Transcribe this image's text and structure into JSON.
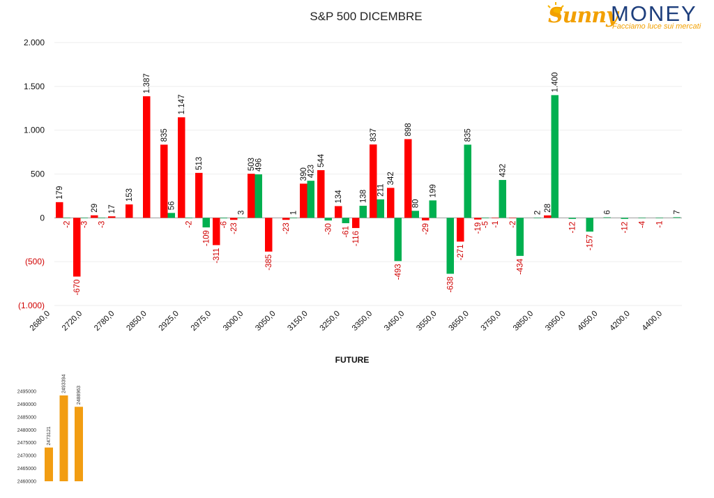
{
  "chart_data": [
    {
      "type": "bar",
      "title": "S&P 500 DICEMBRE",
      "ylim": [
        -1000,
        2000
      ],
      "yticks": [
        2000,
        1500,
        1000,
        500,
        0,
        -500,
        -1000
      ],
      "ytick_labels": [
        "2.000",
        "1.500",
        "1.000",
        "500",
        "0",
        "(500)",
        "(1.000)"
      ],
      "grid": true,
      "x_tick_labels": [
        "2680,0",
        "2720,0",
        "2780,0",
        "2850,0",
        "2925,0",
        "2975,0",
        "3000,0",
        "3050,0",
        "3150,0",
        "3250,0",
        "3350,0",
        "3450,0",
        "3550,0",
        "3650,0",
        "3750,0",
        "3850,0",
        "3950,0",
        "4050,0",
        "4200,0",
        "4400,0"
      ],
      "series": [
        {
          "color": "#ff0000",
          "values": [
            179,
            -670,
            29,
            17,
            153,
            1387,
            835,
            1147,
            513,
            -311,
            -23,
            503,
            -385,
            -23,
            390,
            544,
            134,
            -116,
            837,
            342,
            898,
            -29,
            null,
            -271,
            -19,
            -1,
            -2,
            null,
            28,
            null,
            null,
            null,
            null
          ],
          "labels": [
            "179",
            "-670",
            "29",
            "17",
            "153",
            "1.387",
            "835",
            "1.147",
            "513",
            "-311",
            "-23",
            "503",
            "-385",
            "-23",
            "390",
            "544",
            "134",
            "-116",
            "837",
            "342",
            "898",
            "-29",
            "",
            "-271",
            "-19",
            "-1",
            "-2",
            "",
            "28",
            "",
            "",
            "",
            ""
          ]
        },
        {
          "color": "#00b050",
          "values": [
            -2,
            -3,
            -3,
            null,
            null,
            null,
            56,
            -2,
            -109,
            -6,
            3,
            496,
            null,
            1,
            423,
            -30,
            -61,
            138,
            211,
            -493,
            80,
            199,
            -638,
            835,
            -5,
            432,
            -434,
            2,
            1400,
            -12,
            -157,
            6,
            -12,
            -4,
            -1,
            7
          ],
          "labels": [
            "-2",
            "-3",
            "-3",
            "",
            "",
            "",
            "56",
            "-2",
            "-109",
            "-6",
            "3",
            "496",
            "",
            "1",
            "423",
            "-30",
            "-61",
            "138",
            "211",
            "-493",
            "80",
            "199",
            "-638",
            "835",
            "-5",
            "432",
            "-434",
            "2",
            "1.400",
            "-12",
            "-157",
            "6",
            "-12",
            "-4",
            "-1",
            "7"
          ]
        }
      ]
    },
    {
      "type": "bar",
      "title": "FUTURE",
      "color": "#f29d12",
      "values": [
        2473121,
        2493394,
        2488963
      ],
      "labels": [
        "2473121",
        "2493394",
        "2488963"
      ],
      "ylim": [
        2460000,
        2495000
      ],
      "yticks": [
        2495000,
        2490000,
        2485000,
        2480000,
        2475000,
        2470000,
        2465000,
        2460000
      ],
      "ytick_labels": [
        "2495000",
        "2490000",
        "2485000",
        "2480000",
        "2475000",
        "2470000",
        "2465000",
        "2460000"
      ]
    }
  ],
  "logo": {
    "name_a": "Sunny",
    "name_b": "MONEY",
    "tagline": "Facciamo luce sui mercati",
    "colors": {
      "orange": "#f2a000",
      "blue": "#1d3e7c"
    }
  }
}
